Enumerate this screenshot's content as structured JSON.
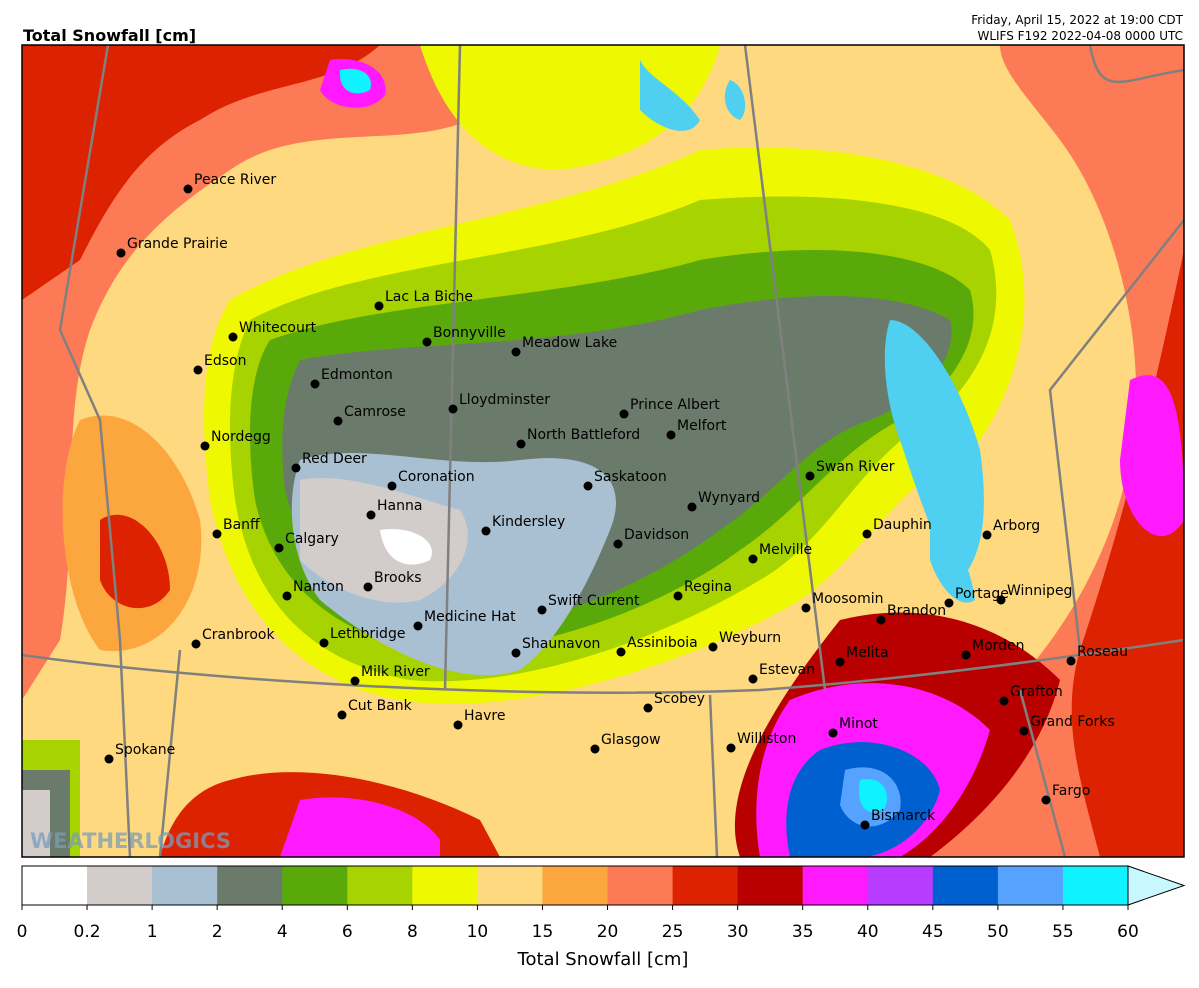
{
  "header": {
    "title": "Total Snowfall [cm]",
    "date_line": "Friday, April 15, 2022 at 19:00 CDT",
    "run_line": "WLIFS F192 2022-04-08 0000 UTC"
  },
  "watermark": "WEATHERLOGICS",
  "cities": [
    "Peace River",
    "Grande Prairie",
    "Lac La Biche",
    "Whitecourt",
    "Bonnyville",
    "Meadow Lake",
    "Edson",
    "Edmonton",
    "Lloydminster",
    "Prince Albert",
    "Camrose",
    "Melfort",
    "North Battleford",
    "Nordegg",
    "Red Deer",
    "Swan River",
    "Coronation",
    "Saskatoon",
    "Wynyard",
    "Hanna",
    "Kindersley",
    "Banff",
    "Dauphin",
    "Arborg",
    "Calgary",
    "Davidson",
    "Melville",
    "Brooks",
    "Nanton",
    "Regina",
    "Swift Current",
    "Moosomin",
    "Portage",
    "Winnipeg",
    "Brandon",
    "Medicine Hat",
    "Cranbrook",
    "Lethbridge",
    "Assiniboia",
    "Weyburn",
    "Shaunavon",
    "Morden",
    "Melita",
    "Roseau",
    "Estevan",
    "Milk River",
    "Scobey",
    "Grafton",
    "Cut Bank",
    "Havre",
    "Minot",
    "Grand Forks",
    "Glasgow",
    "Williston",
    "Spokane",
    "Fargo",
    "Bismarck"
  ],
  "colorbar": {
    "label": "Total Snowfall [cm]",
    "ticks": [
      0,
      0.2,
      1,
      2,
      4,
      6,
      8,
      10,
      15,
      20,
      25,
      30,
      35,
      40,
      45,
      50,
      55,
      60
    ],
    "colors": [
      "#ffffff",
      "#d2ccca",
      "#a9c0d2",
      "#6b7b6b",
      "#5aa90a",
      "#a7d300",
      "#eef800",
      "#fed97f",
      "#fca63e",
      "#fd7a56",
      "#dc2200",
      "#b80000",
      "#ff19ff",
      "#b83cff",
      "#0060d0",
      "#56a2ff",
      "#0ff2ff"
    ],
    "extend_color": "#c8f8ff"
  }
}
